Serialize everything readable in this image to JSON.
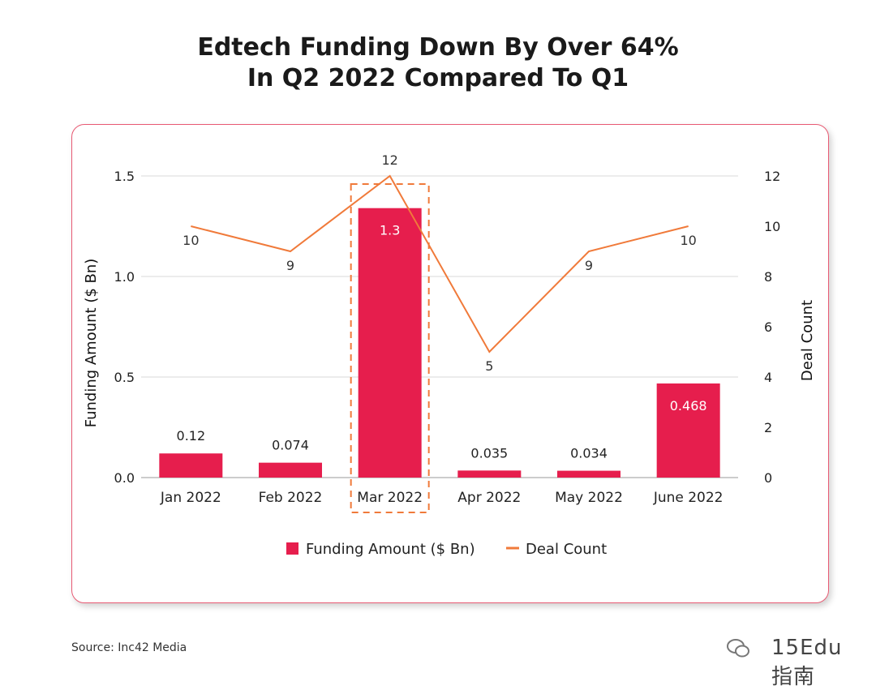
{
  "title_line1": "Edtech Funding Down By Over 64%",
  "title_line2": "In Q2 2022 Compared To Q1",
  "source": "Source: Inc42 Media",
  "watermark": {
    "brand": "inc",
    "text": "15Edu指南"
  },
  "colors": {
    "bar": "#e61e4d",
    "line": "#f07a3a",
    "highlight_box": "#f07a3a",
    "grid": "#d9d9d9",
    "card_border": "#e85a73"
  },
  "chart_data": {
    "type": "bar",
    "categories": [
      "Jan 2022",
      "Feb 2022",
      "Mar 2022",
      "Apr 2022",
      "May 2022",
      "June 2022"
    ],
    "series": [
      {
        "name": "Funding Amount ($ Bn)",
        "type": "bar",
        "axis": "left",
        "values": [
          0.12,
          0.074,
          1.34,
          0.035,
          0.034,
          0.468
        ],
        "labels": [
          "0.12",
          "0.074",
          "1.3",
          "0.035",
          "0.034",
          "0.468"
        ]
      },
      {
        "name": "Deal Count",
        "type": "line",
        "axis": "right",
        "values": [
          10,
          9,
          12,
          5,
          9,
          10
        ],
        "labels": [
          "10",
          "9",
          "12",
          "5",
          "9",
          "10"
        ]
      }
    ],
    "ylabel": "Funding Amount ($ Bn)",
    "y2label": "Deal Count",
    "ylim": [
      0,
      1.5
    ],
    "yticks": [
      "0.0",
      "0.5",
      "1.0",
      "1.5"
    ],
    "y2lim": [
      0,
      12
    ],
    "y2ticks": [
      "0",
      "2",
      "4",
      "6",
      "8",
      "10",
      "12"
    ],
    "highlight_category": "Mar 2022",
    "grid": true,
    "legend_position": "bottom-center",
    "legend": [
      "Funding Amount ($ Bn)",
      "Deal Count"
    ]
  }
}
